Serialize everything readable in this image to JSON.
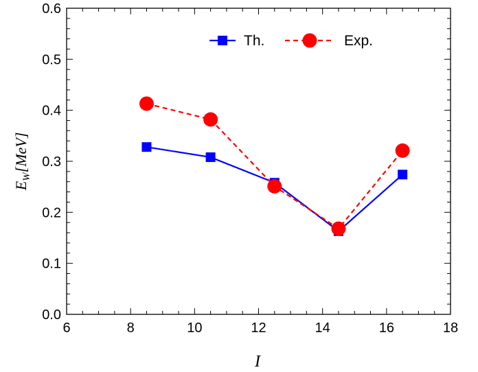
{
  "chart_data": {
    "type": "line",
    "x": [
      8.5,
      10.5,
      12.5,
      14.5,
      16.5
    ],
    "series": [
      {
        "name": "Th.",
        "values": [
          0.328,
          0.308,
          0.258,
          0.163,
          0.274
        ],
        "color": "#0000ff",
        "marker": "square",
        "line_style": "solid"
      },
      {
        "name": "Exp.",
        "values": [
          0.413,
          0.382,
          0.251,
          0.168,
          0.321
        ],
        "color": "#ff0000",
        "marker": "circle",
        "line_style": "dashed"
      }
    ],
    "xlim": [
      6,
      18
    ],
    "ylim": [
      0.0,
      0.6
    ],
    "x_ticks": [
      "6",
      "8",
      "10",
      "12",
      "14",
      "16",
      "18"
    ],
    "y_ticks": [
      "0.0",
      "0.1",
      "0.2",
      "0.3",
      "0.4",
      "0.5",
      "0.6"
    ],
    "xlabel": "I",
    "ylabel": "E",
    "ylabel_subscript": "W",
    "ylabel_suffix": "[MeV]",
    "grid": false,
    "legend_position": "top-center"
  }
}
